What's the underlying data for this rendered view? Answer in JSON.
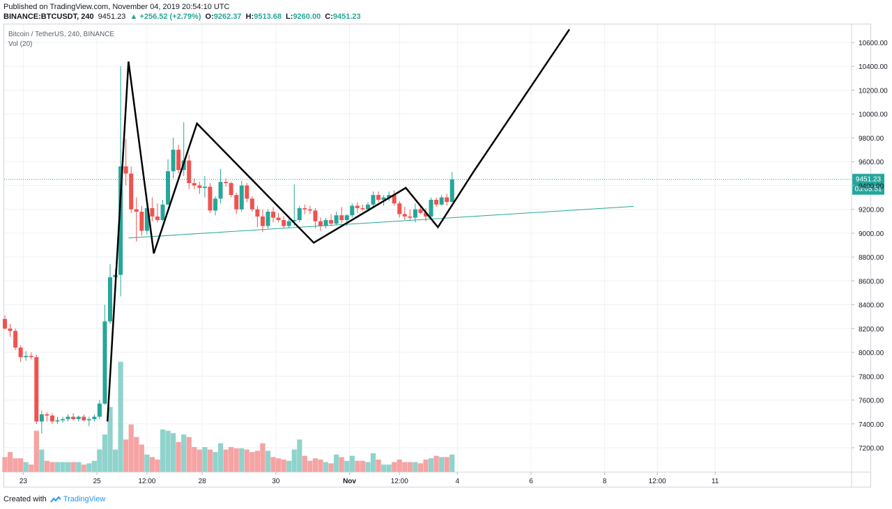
{
  "header": {
    "published_line": "Published on TradingView.com, November 04, 2019 20:54:10 UTC",
    "symbol": "BINANCE:BTCUSDT, 240",
    "last": "9451.23",
    "change": "▲ +256.52 (+2.79%)",
    "o_label": "O:",
    "o_value": "9262.37",
    "h_label": "H:",
    "h_value": "9513.68",
    "l_label": "L:",
    "l_value": "9260.00",
    "c_label": "C:",
    "c_value": "9451.23"
  },
  "legend": {
    "series_title": "Bitcoin / TetherUS, 240, BINANCE",
    "volume_title": "Vol (20)"
  },
  "footer": {
    "created_with": "Created with",
    "brand": "TradingView"
  },
  "colors": {
    "up": "#26a69a",
    "down": "#ef5350",
    "up_volume": "#8fd3cc",
    "down_volume": "#f5a3a3",
    "pattern_line": "#000000",
    "trend_line": "#26a69a",
    "price_line": "#26a69a"
  },
  "chart_data": {
    "type": "candlestick",
    "title": "Bitcoin / TetherUS, 240, BINANCE",
    "ylim": [
      7050,
      10750
    ],
    "yticks": [
      "10600.00",
      "10400.00",
      "10200.00",
      "10000.00",
      "9800.00",
      "9600.00",
      "9400.00",
      "9200.00",
      "9000.00",
      "8800.00",
      "8600.00",
      "8400.00",
      "8200.00",
      "8000.00",
      "7800.00",
      "7600.00",
      "7400.00",
      "7200.00"
    ],
    "xticks": [
      {
        "label": "23",
        "i": 3.5
      },
      {
        "label": "25",
        "i": 17.5
      },
      {
        "label": "12:00",
        "i": 27
      },
      {
        "label": "28",
        "i": 37.5
      },
      {
        "label": "30",
        "i": 51.5
      },
      {
        "label": "Nov",
        "i": 65.5,
        "bold": true
      },
      {
        "label": "12:00",
        "i": 75
      },
      {
        "label": "4",
        "i": 86
      },
      {
        "label": "6",
        "i": 100
      },
      {
        "label": "8",
        "i": 114
      },
      {
        "label": "12:00",
        "i": 124
      },
      {
        "label": "11",
        "i": 135
      }
    ],
    "last_price": {
      "label": "9451.23",
      "value": 9451.23,
      "countdown": "03:05:51"
    },
    "candles": [
      {
        "o": 8280,
        "h": 8310,
        "l": 8190,
        "c": 8200,
        "v": 60
      },
      {
        "o": 8200,
        "h": 8240,
        "l": 8130,
        "c": 8180,
        "v": 80
      },
      {
        "o": 8180,
        "h": 8200,
        "l": 8020,
        "c": 8040,
        "v": 55
      },
      {
        "o": 8040,
        "h": 8060,
        "l": 7920,
        "c": 7960,
        "v": 55
      },
      {
        "o": 7960,
        "h": 8010,
        "l": 7930,
        "c": 7970,
        "v": 40
      },
      {
        "o": 7970,
        "h": 8000,
        "l": 7940,
        "c": 7960,
        "v": 30
      },
      {
        "o": 7960,
        "h": 7980,
        "l": 7400,
        "c": 7420,
        "v": 165
      },
      {
        "o": 7420,
        "h": 7510,
        "l": 7320,
        "c": 7480,
        "v": 90
      },
      {
        "o": 7480,
        "h": 7500,
        "l": 7420,
        "c": 7470,
        "v": 45
      },
      {
        "o": 7470,
        "h": 7490,
        "l": 7400,
        "c": 7420,
        "v": 40
      },
      {
        "o": 7420,
        "h": 7460,
        "l": 7400,
        "c": 7430,
        "v": 40
      },
      {
        "o": 7430,
        "h": 7460,
        "l": 7410,
        "c": 7440,
        "v": 40
      },
      {
        "o": 7440,
        "h": 7480,
        "l": 7420,
        "c": 7460,
        "v": 40
      },
      {
        "o": 7460,
        "h": 7490,
        "l": 7430,
        "c": 7440,
        "v": 40
      },
      {
        "o": 7440,
        "h": 7470,
        "l": 7420,
        "c": 7460,
        "v": 40
      },
      {
        "o": 7460,
        "h": 7480,
        "l": 7420,
        "c": 7430,
        "v": 30
      },
      {
        "o": 7430,
        "h": 7460,
        "l": 7380,
        "c": 7440,
        "v": 35
      },
      {
        "o": 7440,
        "h": 7480,
        "l": 7420,
        "c": 7460,
        "v": 45
      },
      {
        "o": 7460,
        "h": 7600,
        "l": 7440,
        "c": 7570,
        "v": 90
      },
      {
        "o": 7570,
        "h": 8400,
        "l": 7560,
        "c": 8260,
        "v": 150
      },
      {
        "o": 8260,
        "h": 8740,
        "l": 8240,
        "c": 8630,
        "v": 260
      },
      {
        "o": 8630,
        "h": 8700,
        "l": 8550,
        "c": 8650,
        "v": 90
      },
      {
        "o": 8650,
        "h": 10400,
        "l": 8470,
        "c": 9560,
        "v": 440
      },
      {
        "o": 9560,
        "h": 9790,
        "l": 9400,
        "c": 9500,
        "v": 130
      },
      {
        "o": 9500,
        "h": 9560,
        "l": 9170,
        "c": 9200,
        "v": 190
      },
      {
        "o": 9200,
        "h": 9300,
        "l": 8930,
        "c": 9180,
        "v": 140
      },
      {
        "o": 9180,
        "h": 9230,
        "l": 8980,
        "c": 9020,
        "v": 110
      },
      {
        "o": 9020,
        "h": 9230,
        "l": 8990,
        "c": 9210,
        "v": 70
      },
      {
        "o": 9210,
        "h": 9300,
        "l": 9100,
        "c": 9140,
        "v": 60
      },
      {
        "o": 9140,
        "h": 9250,
        "l": 9090,
        "c": 9110,
        "v": 50
      },
      {
        "o": 9110,
        "h": 9280,
        "l": 9100,
        "c": 9240,
        "v": 170
      },
      {
        "o": 9240,
        "h": 9620,
        "l": 9240,
        "c": 9520,
        "v": 165
      },
      {
        "o": 9520,
        "h": 9800,
        "l": 9460,
        "c": 9700,
        "v": 155
      },
      {
        "o": 9700,
        "h": 9740,
        "l": 9500,
        "c": 9530,
        "v": 120
      },
      {
        "o": 9530,
        "h": 9930,
        "l": 9480,
        "c": 9610,
        "v": 150
      },
      {
        "o": 9610,
        "h": 9660,
        "l": 9370,
        "c": 9420,
        "v": 140
      },
      {
        "o": 9420,
        "h": 9460,
        "l": 9370,
        "c": 9400,
        "v": 100
      },
      {
        "o": 9400,
        "h": 9430,
        "l": 9330,
        "c": 9380,
        "v": 90
      },
      {
        "o": 9380,
        "h": 9480,
        "l": 9300,
        "c": 9390,
        "v": 100
      },
      {
        "o": 9390,
        "h": 9420,
        "l": 9170,
        "c": 9190,
        "v": 90
      },
      {
        "o": 9190,
        "h": 9310,
        "l": 9150,
        "c": 9290,
        "v": 80
      },
      {
        "o": 9290,
        "h": 9540,
        "l": 9250,
        "c": 9430,
        "v": 115
      },
      {
        "o": 9430,
        "h": 9460,
        "l": 9390,
        "c": 9420,
        "v": 90
      },
      {
        "o": 9420,
        "h": 9430,
        "l": 9300,
        "c": 9320,
        "v": 100
      },
      {
        "o": 9320,
        "h": 9340,
        "l": 9160,
        "c": 9200,
        "v": 95
      },
      {
        "o": 9200,
        "h": 9440,
        "l": 9180,
        "c": 9400,
        "v": 95
      },
      {
        "o": 9400,
        "h": 9420,
        "l": 9260,
        "c": 9290,
        "v": 90
      },
      {
        "o": 9290,
        "h": 9310,
        "l": 9180,
        "c": 9200,
        "v": 80
      },
      {
        "o": 9200,
        "h": 9230,
        "l": 9050,
        "c": 9140,
        "v": 85
      },
      {
        "o": 9140,
        "h": 9200,
        "l": 9010,
        "c": 9060,
        "v": 115
      },
      {
        "o": 9060,
        "h": 9200,
        "l": 9040,
        "c": 9180,
        "v": 85
      },
      {
        "o": 9180,
        "h": 9220,
        "l": 9090,
        "c": 9130,
        "v": 60
      },
      {
        "o": 9130,
        "h": 9170,
        "l": 9090,
        "c": 9110,
        "v": 55
      },
      {
        "o": 9110,
        "h": 9140,
        "l": 9040,
        "c": 9060,
        "v": 50
      },
      {
        "o": 9060,
        "h": 9120,
        "l": 9040,
        "c": 9100,
        "v": 45
      },
      {
        "o": 9100,
        "h": 9410,
        "l": 9060,
        "c": 9110,
        "v": 90
      },
      {
        "o": 9110,
        "h": 9230,
        "l": 9090,
        "c": 9210,
        "v": 130
      },
      {
        "o": 9210,
        "h": 9240,
        "l": 9160,
        "c": 9200,
        "v": 65
      },
      {
        "o": 9200,
        "h": 9230,
        "l": 9160,
        "c": 9190,
        "v": 45
      },
      {
        "o": 9190,
        "h": 9210,
        "l": 9040,
        "c": 9100,
        "v": 55
      },
      {
        "o": 9100,
        "h": 9130,
        "l": 9020,
        "c": 9060,
        "v": 50
      },
      {
        "o": 9060,
        "h": 9130,
        "l": 9040,
        "c": 9110,
        "v": 40
      },
      {
        "o": 9110,
        "h": 9160,
        "l": 9060,
        "c": 9080,
        "v": 35
      },
      {
        "o": 9080,
        "h": 9180,
        "l": 9070,
        "c": 9150,
        "v": 70
      },
      {
        "o": 9150,
        "h": 9220,
        "l": 9080,
        "c": 9110,
        "v": 60
      },
      {
        "o": 9110,
        "h": 9160,
        "l": 9060,
        "c": 9150,
        "v": 45
      },
      {
        "o": 9150,
        "h": 9250,
        "l": 9130,
        "c": 9230,
        "v": 65
      },
      {
        "o": 9230,
        "h": 9260,
        "l": 9170,
        "c": 9210,
        "v": 45
      },
      {
        "o": 9210,
        "h": 9240,
        "l": 9190,
        "c": 9200,
        "v": 45
      },
      {
        "o": 9200,
        "h": 9260,
        "l": 9180,
        "c": 9240,
        "v": 40
      },
      {
        "o": 9240,
        "h": 9350,
        "l": 9220,
        "c": 9320,
        "v": 75
      },
      {
        "o": 9320,
        "h": 9350,
        "l": 9260,
        "c": 9280,
        "v": 50
      },
      {
        "o": 9280,
        "h": 9320,
        "l": 9230,
        "c": 9300,
        "v": 30
      },
      {
        "o": 9300,
        "h": 9350,
        "l": 9270,
        "c": 9320,
        "v": 30
      },
      {
        "o": 9320,
        "h": 9360,
        "l": 9230,
        "c": 9250,
        "v": 40
      },
      {
        "o": 9250,
        "h": 9270,
        "l": 9130,
        "c": 9160,
        "v": 50
      },
      {
        "o": 9160,
        "h": 9220,
        "l": 9110,
        "c": 9140,
        "v": 40
      },
      {
        "o": 9140,
        "h": 9200,
        "l": 9110,
        "c": 9130,
        "v": 40
      },
      {
        "o": 9130,
        "h": 9250,
        "l": 9090,
        "c": 9200,
        "v": 40
      },
      {
        "o": 9200,
        "h": 9230,
        "l": 9160,
        "c": 9170,
        "v": 35
      },
      {
        "o": 9170,
        "h": 9210,
        "l": 9100,
        "c": 9140,
        "v": 50
      },
      {
        "o": 9140,
        "h": 9300,
        "l": 9120,
        "c": 9280,
        "v": 55
      },
      {
        "o": 9280,
        "h": 9300,
        "l": 9220,
        "c": 9240,
        "v": 65
      },
      {
        "o": 9240,
        "h": 9320,
        "l": 9230,
        "c": 9300,
        "v": 60
      },
      {
        "o": 9300,
        "h": 9330,
        "l": 9230,
        "c": 9262,
        "v": 60
      },
      {
        "o": 9262,
        "h": 9514,
        "l": 9260,
        "c": 9451,
        "v": 70
      }
    ],
    "pattern_line": [
      {
        "i": 19.5,
        "p": 7420
      },
      {
        "i": 23.5,
        "p": 10440
      },
      {
        "i": 28.3,
        "p": 8830
      },
      {
        "i": 36.5,
        "p": 9920
      },
      {
        "i": 58.7,
        "p": 8920
      },
      {
        "i": 76.2,
        "p": 9380
      },
      {
        "i": 82.3,
        "p": 9050
      },
      {
        "i": 89.0,
        "p": 9510
      },
      {
        "i": 107.3,
        "p": 10710
      }
    ],
    "trend_line": [
      {
        "i": 23.5,
        "p": 8960
      },
      {
        "i": 119.5,
        "p": 9225
      }
    ]
  }
}
